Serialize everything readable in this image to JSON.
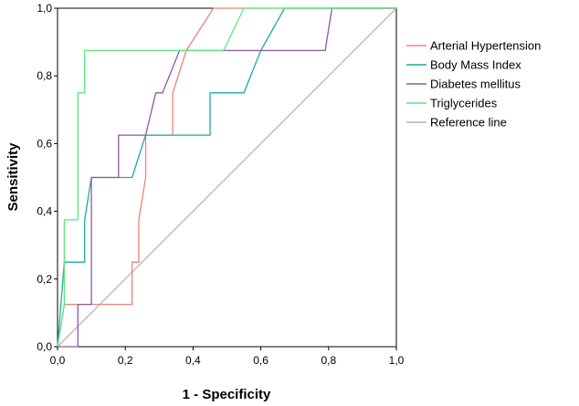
{
  "chart_data": {
    "type": "line",
    "title": "",
    "xlabel": "1 - Specificity",
    "ylabel": "Sensitivity",
    "xlim": [
      0,
      1
    ],
    "ylim": [
      0,
      1
    ],
    "x_ticks": [
      "0,0",
      "0,2",
      "0,4",
      "0,6",
      "0,8",
      "1,0"
    ],
    "y_ticks": [
      "0,0",
      "0,2",
      "0,4",
      "0,6",
      "0,8",
      "1,0"
    ],
    "grid": false,
    "legend_position": "right",
    "series": [
      {
        "name": "Arterial Hypertension",
        "color": "#f08078",
        "points": [
          [
            0,
            0
          ],
          [
            0.02,
            0.125
          ],
          [
            0.22,
            0.125
          ],
          [
            0.22,
            0.25
          ],
          [
            0.24,
            0.25
          ],
          [
            0.24,
            0.375
          ],
          [
            0.26,
            0.5
          ],
          [
            0.26,
            0.625
          ],
          [
            0.34,
            0.625
          ],
          [
            0.34,
            0.75
          ],
          [
            0.38,
            0.875
          ],
          [
            0.46,
            1.0
          ],
          [
            1.0,
            1.0
          ]
        ]
      },
      {
        "name": "Body Mass Index",
        "color": "#1aaca2",
        "points": [
          [
            0,
            0
          ],
          [
            0.02,
            0.25
          ],
          [
            0.08,
            0.25
          ],
          [
            0.08,
            0.375
          ],
          [
            0.1,
            0.5
          ],
          [
            0.16,
            0.5
          ],
          [
            0.22,
            0.5
          ],
          [
            0.26,
            0.625
          ],
          [
            0.45,
            0.625
          ],
          [
            0.45,
            0.75
          ],
          [
            0.55,
            0.75
          ],
          [
            0.6,
            0.875
          ],
          [
            0.67,
            1.0
          ],
          [
            1.0,
            1.0
          ]
        ]
      },
      {
        "name": "Diabetes mellitus",
        "color": "#8e58a6",
        "points": [
          [
            0,
            0
          ],
          [
            0.06,
            0
          ],
          [
            0.06,
            0.125
          ],
          [
            0.1,
            0.125
          ],
          [
            0.1,
            0.25
          ],
          [
            0.1,
            0.5
          ],
          [
            0.18,
            0.5
          ],
          [
            0.18,
            0.625
          ],
          [
            0.26,
            0.625
          ],
          [
            0.29,
            0.75
          ],
          [
            0.31,
            0.75
          ],
          [
            0.36,
            0.875
          ],
          [
            0.79,
            0.875
          ],
          [
            0.81,
            1.0
          ],
          [
            1.0,
            1.0
          ]
        ]
      },
      {
        "name": "Triglycerides",
        "color": "#5ce67c",
        "points": [
          [
            0,
            0
          ],
          [
            0.02,
            0.125
          ],
          [
            0.02,
            0.375
          ],
          [
            0.06,
            0.375
          ],
          [
            0.06,
            0.75
          ],
          [
            0.08,
            0.75
          ],
          [
            0.08,
            0.875
          ],
          [
            0.49,
            0.875
          ],
          [
            0.55,
            1.0
          ],
          [
            1.0,
            1.0
          ]
        ]
      },
      {
        "name": "Reference line",
        "color": "#b4b4b4",
        "points": [
          [
            0,
            0
          ],
          [
            1,
            1
          ]
        ]
      }
    ]
  }
}
